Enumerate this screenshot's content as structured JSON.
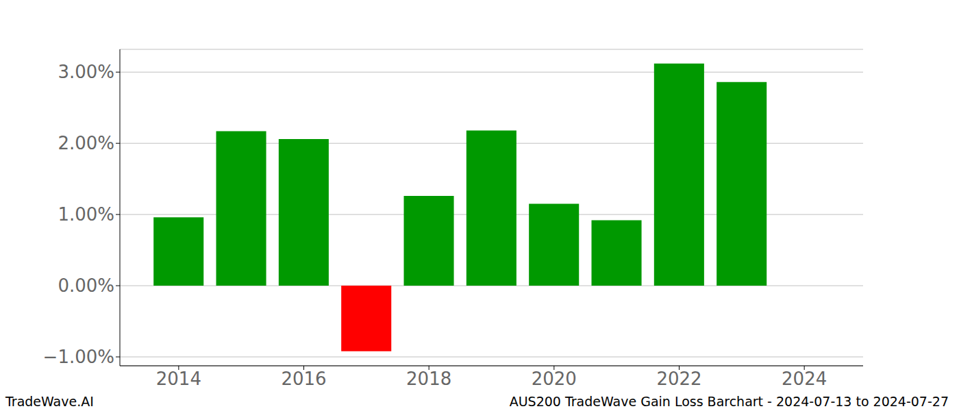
{
  "chart_data": {
    "type": "bar",
    "title": "AUS200 TradeWave Gain Loss Barchart - 2024-07-13 to 2024-07-27",
    "annotations": [
      "TradeWave.AI"
    ],
    "x": [
      2014,
      2015,
      2016,
      2017,
      2018,
      2019,
      2020,
      2021,
      2022,
      2023
    ],
    "values": [
      0.96,
      2.17,
      2.06,
      -0.92,
      1.26,
      2.18,
      1.15,
      0.92,
      3.12,
      2.86
    ],
    "colors": [
      "#009900",
      "#009900",
      "#009900",
      "#ff0000",
      "#009900",
      "#009900",
      "#009900",
      "#009900",
      "#009900",
      "#009900"
    ],
    "xlim": [
      2013.06,
      2024.94
    ],
    "xticks": [
      2014,
      2016,
      2018,
      2020,
      2022,
      2024
    ],
    "ylim": [
      -1.125,
      3.32
    ],
    "yticks": [
      {
        "value": -1,
        "label": "−1.00%"
      },
      {
        "value": 0,
        "label": "0.00%"
      },
      {
        "value": 1,
        "label": "1.00%"
      },
      {
        "value": 2,
        "label": "2.00%"
      },
      {
        "value": 3,
        "label": "3.00%"
      }
    ],
    "grid": true
  }
}
